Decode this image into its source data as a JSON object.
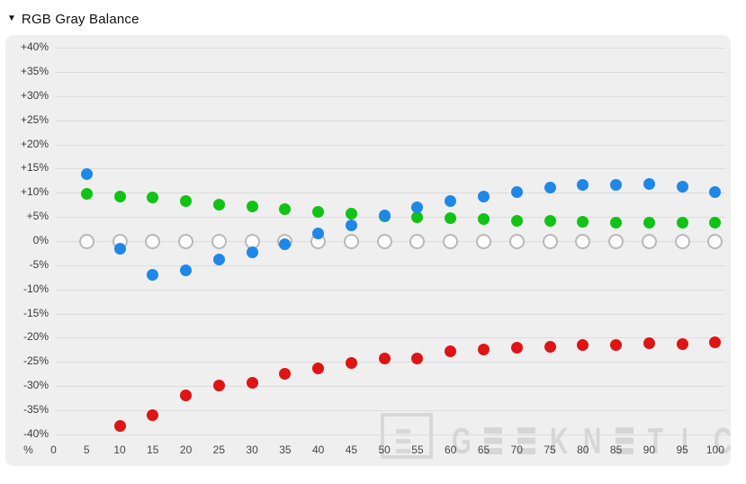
{
  "header": {
    "collapse_icon": "▼",
    "title": "RGB Gray Balance"
  },
  "watermark": {
    "brand": "GEEKNETIC",
    "letters": [
      "G",
      "E",
      "E",
      "K",
      "N",
      "E",
      "T",
      "I",
      "C"
    ]
  },
  "chart_data": {
    "type": "scatter",
    "title": "RGB Gray Balance",
    "x_axis": {
      "unit_label": "%",
      "ticks": [
        "0",
        "5",
        "10",
        "15",
        "20",
        "25",
        "30",
        "35",
        "40",
        "45",
        "50",
        "55",
        "60",
        "65",
        "70",
        "75",
        "80",
        "85",
        "90",
        "95",
        "100"
      ]
    },
    "y_axis": {
      "ticks": [
        "+40%",
        "+35%",
        "+30%",
        "+25%",
        "+20%",
        "+15%",
        "+10%",
        "+5%",
        "0%",
        "-5%",
        "-10%",
        "-15%",
        "-20%",
        "-25%",
        "-30%",
        "-35%",
        "-40%"
      ],
      "ylim": [
        -40,
        40
      ],
      "grid": true
    },
    "x": [
      5,
      10,
      15,
      20,
      25,
      30,
      35,
      40,
      45,
      50,
      55,
      60,
      65,
      70,
      75,
      80,
      85,
      90,
      95,
      100
    ],
    "series": [
      {
        "name": "reference-zero",
        "marker": "hollow-circle",
        "color": "#b9b9b9",
        "values": [
          0,
          0,
          0,
          0,
          0,
          0,
          0,
          0,
          0,
          0,
          0,
          0,
          0,
          0,
          0,
          0,
          0,
          0,
          0,
          0
        ]
      },
      {
        "name": "red",
        "marker": "dot",
        "color": "#df1414",
        "values": [
          null,
          -38.3,
          -36.1,
          -31.9,
          -29.9,
          -29.3,
          -27.4,
          -26.3,
          -25.3,
          -24.3,
          -24.3,
          -22.9,
          -22.4,
          -22.1,
          -21.8,
          -21.6,
          -21.5,
          -21.2,
          -21.3,
          -20.9
        ]
      },
      {
        "name": "green",
        "marker": "dot",
        "color": "#10c315",
        "values": [
          9.7,
          9.3,
          9.1,
          8.2,
          7.5,
          7.1,
          6.6,
          6.0,
          5.6,
          5.2,
          4.9,
          4.7,
          4.5,
          4.2,
          4.1,
          4.0,
          3.9,
          3.8,
          3.8,
          3.9
        ]
      },
      {
        "name": "blue",
        "marker": "dot",
        "color": "#1f87e8",
        "values": [
          13.9,
          -1.5,
          -6.9,
          -6.1,
          -3.9,
          -2.3,
          -0.7,
          1.5,
          3.2,
          5.4,
          7.0,
          8.2,
          9.3,
          10.2,
          11.1,
          11.6,
          11.7,
          11.8,
          11.2,
          10.1
        ]
      }
    ]
  }
}
